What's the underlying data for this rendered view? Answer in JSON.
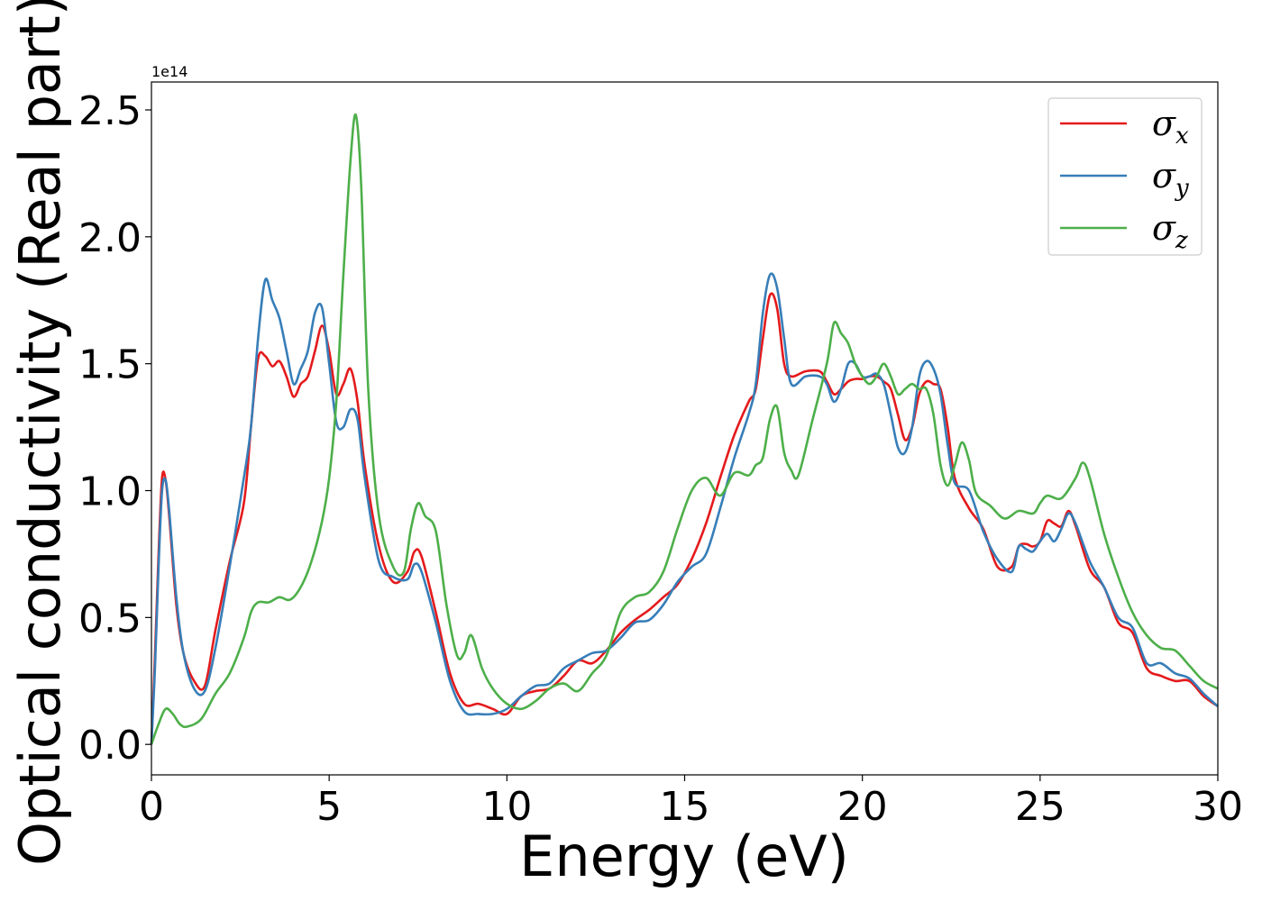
{
  "chart_data": {
    "type": "line",
    "title": "",
    "xlabel": "Energy (eV)",
    "ylabel": "Optical conductivity (Real part)",
    "y_offset_label": "1e14",
    "xlim": [
      0,
      30
    ],
    "ylim": [
      -0.12,
      2.61
    ],
    "x_ticks": [
      0,
      5,
      10,
      15,
      20,
      25,
      30
    ],
    "x_tick_labels": [
      "0",
      "5",
      "10",
      "15",
      "20",
      "25",
      "30"
    ],
    "y_ticks": [
      0.0,
      0.5,
      1.0,
      1.5,
      2.0,
      2.5
    ],
    "y_tick_labels": [
      "0.0",
      "0.5",
      "1.0",
      "1.5",
      "2.0",
      "2.5"
    ],
    "grid": false,
    "legend_position": "top-right",
    "series": [
      {
        "name": "σ",
        "sub": "x",
        "color": "#e41a1c",
        "x": [
          0,
          0.1,
          0.2,
          0.3,
          0.4,
          0.5,
          0.7,
          0.9,
          1.2,
          1.5,
          1.8,
          2.2,
          2.6,
          2.8,
          3.0,
          3.2,
          3.4,
          3.6,
          3.8,
          4.0,
          4.2,
          4.4,
          4.6,
          4.8,
          5.0,
          5.2,
          5.4,
          5.6,
          5.8,
          6.0,
          6.4,
          6.8,
          7.2,
          7.4,
          7.6,
          8.0,
          8.4,
          8.8,
          9.2,
          9.6,
          10.0,
          10.4,
          10.8,
          11.2,
          11.6,
          12.0,
          12.4,
          12.8,
          13.2,
          13.6,
          14.0,
          14.4,
          14.8,
          15.2,
          15.6,
          16.0,
          16.4,
          16.8,
          17.0,
          17.2,
          17.4,
          17.6,
          17.8,
          18.0,
          18.4,
          18.8,
          19.0,
          19.2,
          19.4,
          19.6,
          19.8,
          20.0,
          20.2,
          20.4,
          20.6,
          20.8,
          21.0,
          21.2,
          21.4,
          21.6,
          21.8,
          22.0,
          22.2,
          22.4,
          22.6,
          23.0,
          23.4,
          23.8,
          24.2,
          24.4,
          24.6,
          24.8,
          25.0,
          25.2,
          25.4,
          25.6,
          25.8,
          26.0,
          26.4,
          26.8,
          27.2,
          27.6,
          28.0,
          28.4,
          28.8,
          29.2,
          29.6,
          30.0
        ],
        "y": [
          0.0,
          0.35,
          0.75,
          1.05,
          1.04,
          0.9,
          0.55,
          0.36,
          0.25,
          0.23,
          0.45,
          0.72,
          0.95,
          1.25,
          1.52,
          1.53,
          1.49,
          1.51,
          1.45,
          1.37,
          1.42,
          1.45,
          1.55,
          1.65,
          1.55,
          1.38,
          1.42,
          1.48,
          1.35,
          1.1,
          0.78,
          0.64,
          0.68,
          0.76,
          0.74,
          0.52,
          0.28,
          0.16,
          0.16,
          0.14,
          0.12,
          0.19,
          0.21,
          0.22,
          0.27,
          0.33,
          0.32,
          0.37,
          0.44,
          0.49,
          0.53,
          0.58,
          0.63,
          0.73,
          0.87,
          1.05,
          1.22,
          1.35,
          1.4,
          1.6,
          1.77,
          1.72,
          1.5,
          1.45,
          1.47,
          1.47,
          1.43,
          1.38,
          1.4,
          1.43,
          1.44,
          1.44,
          1.45,
          1.45,
          1.43,
          1.4,
          1.3,
          1.2,
          1.25,
          1.38,
          1.43,
          1.42,
          1.4,
          1.25,
          1.05,
          0.93,
          0.85,
          0.7,
          0.7,
          0.78,
          0.79,
          0.78,
          0.8,
          0.88,
          0.87,
          0.86,
          0.92,
          0.86,
          0.69,
          0.62,
          0.48,
          0.44,
          0.3,
          0.27,
          0.25,
          0.25,
          0.19,
          0.15
        ]
      },
      {
        "name": "σ",
        "sub": "y",
        "color": "#377eb8",
        "x": [
          0,
          0.1,
          0.2,
          0.3,
          0.4,
          0.5,
          0.7,
          0.9,
          1.2,
          1.5,
          1.8,
          2.2,
          2.6,
          2.8,
          3.0,
          3.2,
          3.4,
          3.6,
          3.8,
          4.0,
          4.2,
          4.4,
          4.6,
          4.8,
          5.0,
          5.2,
          5.4,
          5.6,
          5.8,
          6.0,
          6.4,
          6.8,
          7.2,
          7.4,
          7.6,
          8.0,
          8.4,
          8.8,
          9.2,
          9.6,
          10.0,
          10.4,
          10.8,
          11.2,
          11.6,
          12.0,
          12.4,
          12.8,
          13.2,
          13.6,
          14.0,
          14.4,
          14.8,
          15.2,
          15.6,
          16.0,
          16.4,
          16.8,
          17.0,
          17.2,
          17.4,
          17.6,
          17.8,
          18.0,
          18.4,
          18.8,
          19.0,
          19.2,
          19.4,
          19.6,
          19.8,
          20.0,
          20.2,
          20.4,
          20.6,
          20.8,
          21.0,
          21.2,
          21.4,
          21.6,
          21.8,
          22.0,
          22.2,
          22.4,
          22.6,
          23.0,
          23.4,
          23.8,
          24.2,
          24.4,
          24.6,
          24.8,
          25.0,
          25.2,
          25.4,
          25.6,
          25.8,
          26.0,
          26.4,
          26.8,
          27.2,
          27.6,
          28.0,
          28.4,
          28.8,
          29.2,
          29.6,
          30.0
        ],
        "y": [
          0.0,
          0.3,
          0.7,
          1.0,
          1.04,
          0.92,
          0.58,
          0.36,
          0.22,
          0.21,
          0.38,
          0.7,
          1.05,
          1.25,
          1.6,
          1.83,
          1.75,
          1.68,
          1.55,
          1.42,
          1.48,
          1.55,
          1.7,
          1.72,
          1.5,
          1.27,
          1.25,
          1.32,
          1.28,
          1.05,
          0.72,
          0.66,
          0.65,
          0.71,
          0.68,
          0.48,
          0.25,
          0.13,
          0.12,
          0.12,
          0.14,
          0.19,
          0.23,
          0.24,
          0.3,
          0.33,
          0.36,
          0.37,
          0.42,
          0.48,
          0.49,
          0.55,
          0.64,
          0.7,
          0.75,
          0.93,
          1.13,
          1.3,
          1.42,
          1.7,
          1.85,
          1.8,
          1.6,
          1.42,
          1.45,
          1.45,
          1.42,
          1.35,
          1.4,
          1.5,
          1.5,
          1.45,
          1.45,
          1.46,
          1.42,
          1.3,
          1.17,
          1.15,
          1.25,
          1.45,
          1.51,
          1.48,
          1.38,
          1.18,
          1.03,
          1.0,
          0.84,
          0.73,
          0.68,
          0.78,
          0.77,
          0.76,
          0.8,
          0.83,
          0.8,
          0.85,
          0.91,
          0.87,
          0.72,
          0.62,
          0.5,
          0.46,
          0.32,
          0.32,
          0.28,
          0.26,
          0.2,
          0.15
        ]
      },
      {
        "name": "σ",
        "sub": "z",
        "color": "#4daf4a",
        "x": [
          0,
          0.2,
          0.4,
          0.6,
          0.8,
          1.0,
          1.4,
          1.8,
          2.2,
          2.6,
          2.8,
          3.0,
          3.3,
          3.6,
          3.9,
          4.2,
          4.5,
          4.8,
          5.0,
          5.2,
          5.4,
          5.6,
          5.75,
          5.9,
          6.1,
          6.4,
          6.8,
          7.1,
          7.3,
          7.5,
          7.7,
          8.0,
          8.3,
          8.6,
          8.8,
          9.0,
          9.3,
          9.6,
          10.0,
          10.4,
          10.8,
          11.2,
          11.6,
          12.0,
          12.4,
          12.8,
          13.2,
          13.6,
          14.0,
          14.4,
          14.8,
          15.2,
          15.6,
          16.0,
          16.4,
          16.8,
          17.0,
          17.2,
          17.4,
          17.6,
          17.8,
          18.0,
          18.2,
          18.6,
          19.0,
          19.2,
          19.4,
          19.6,
          19.8,
          20.0,
          20.2,
          20.4,
          20.6,
          20.8,
          21.0,
          21.2,
          21.4,
          21.6,
          21.8,
          22.0,
          22.2,
          22.4,
          22.6,
          22.8,
          23.0,
          23.2,
          23.6,
          24.0,
          24.4,
          24.8,
          25.0,
          25.2,
          25.6,
          26.0,
          26.2,
          26.4,
          26.8,
          27.2,
          27.6,
          28.0,
          28.4,
          28.8,
          29.2,
          29.6,
          30.0
        ],
        "y": [
          0.0,
          0.08,
          0.14,
          0.12,
          0.08,
          0.07,
          0.1,
          0.2,
          0.28,
          0.42,
          0.52,
          0.56,
          0.56,
          0.58,
          0.57,
          0.62,
          0.72,
          0.88,
          1.05,
          1.35,
          1.85,
          2.3,
          2.48,
          2.2,
          1.4,
          0.9,
          0.7,
          0.68,
          0.85,
          0.95,
          0.9,
          0.84,
          0.55,
          0.35,
          0.36,
          0.43,
          0.3,
          0.22,
          0.16,
          0.14,
          0.17,
          0.22,
          0.24,
          0.21,
          0.28,
          0.35,
          0.52,
          0.58,
          0.6,
          0.68,
          0.85,
          1.0,
          1.05,
          0.98,
          1.07,
          1.06,
          1.1,
          1.13,
          1.28,
          1.33,
          1.15,
          1.08,
          1.06,
          1.28,
          1.5,
          1.66,
          1.62,
          1.58,
          1.5,
          1.45,
          1.42,
          1.45,
          1.5,
          1.45,
          1.38,
          1.4,
          1.42,
          1.4,
          1.4,
          1.3,
          1.1,
          1.02,
          1.1,
          1.19,
          1.12,
          0.99,
          0.94,
          0.89,
          0.92,
          0.91,
          0.95,
          0.98,
          0.97,
          1.05,
          1.11,
          1.05,
          0.83,
          0.66,
          0.52,
          0.43,
          0.38,
          0.37,
          0.31,
          0.25,
          0.22
        ]
      }
    ]
  }
}
